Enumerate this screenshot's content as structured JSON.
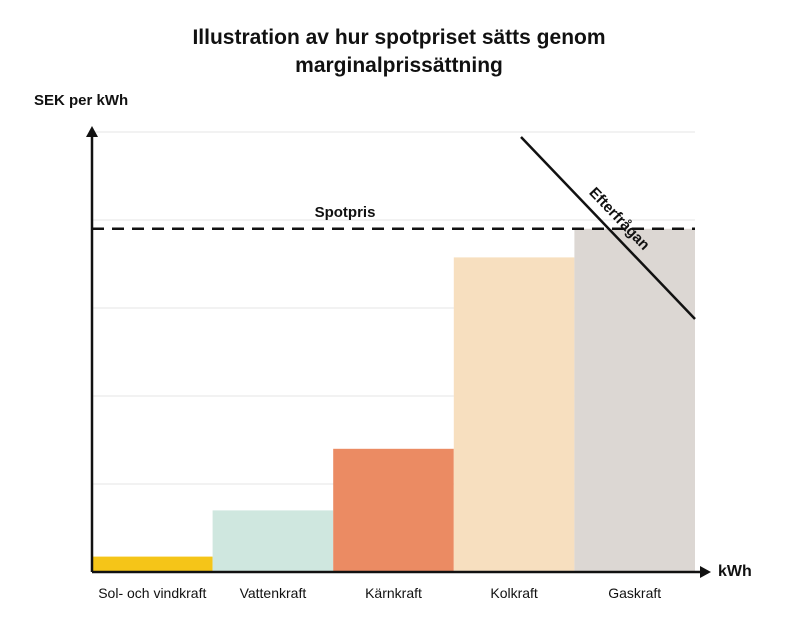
{
  "chart_data": {
    "type": "bar",
    "title": "Illustration av hur spotpriset sätts genom marginalprissättning",
    "title_lines": [
      "Illustration av hur spotpriset sätts genom",
      "marginalprissättning"
    ],
    "xlabel": "kWh",
    "ylabel": "SEK per kWh",
    "categories": [
      "Sol- och vindkraft",
      "Vattenkraft",
      "Kärnkraft",
      "Kolkraft",
      "Gaskraft"
    ],
    "values": [
      0.035,
      0.14,
      0.28,
      0.715,
      0.78
    ],
    "colors": [
      "#f5c518",
      "#cfe7df",
      "#eb8b63",
      "#f7dfbf",
      "#dcd7d3"
    ],
    "ylim": [
      0,
      1
    ],
    "grid": true,
    "annotations": {
      "spot_price": {
        "label": "Spotpris",
        "value": 0.78
      },
      "demand": {
        "label": "Efterfrågan"
      }
    }
  }
}
